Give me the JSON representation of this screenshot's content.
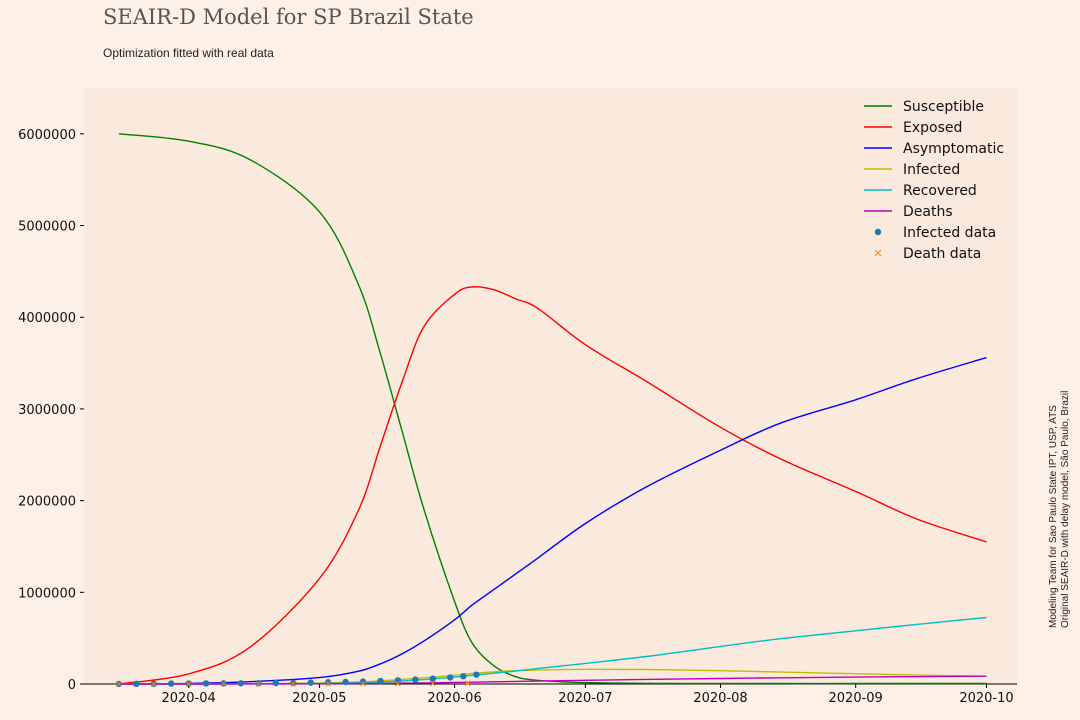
{
  "header": {
    "title": "SEAIR-D Model for SP Brazil State",
    "subtitle": "Optimization fitted with real data"
  },
  "credit": {
    "line1": "Modeling Team for Sao Paulo State IPT, USP, ATS",
    "line2": "Original SEAIR-D with delay model, São Paulo, Brazil"
  },
  "colors": {
    "background": "#fdf0e6",
    "plot_background": "#fae9dd",
    "Susceptible": "#008000",
    "Exposed": "#ff0000",
    "Asymptomatic": "#0000ff",
    "Infected": "#bfbf00",
    "Recovered": "#00bfbf",
    "Deaths": "#bf00bf",
    "Infected data": "#1f77b4",
    "Death data": "#ff7f0e"
  },
  "chart_data": {
    "type": "line",
    "title": "SEAIR-D Model for SP Brazil State",
    "subtitle": "Optimization fitted with real data",
    "xlabel": "",
    "ylabel": "",
    "xlim": [
      "2020-03-08",
      "2020-10-08"
    ],
    "ylim": [
      0,
      6500000
    ],
    "x_ticks": [
      "2020-04",
      "2020-05",
      "2020-06",
      "2020-07",
      "2020-08",
      "2020-09",
      "2020-10"
    ],
    "y_ticks": [
      0,
      1000000,
      2000000,
      3000000,
      4000000,
      5000000,
      6000000
    ],
    "y_tick_labels": [
      "0",
      "1000000",
      "2000000",
      "3000000",
      "4000000",
      "5000000",
      "6000000"
    ],
    "grid": false,
    "legend_position": "top-right",
    "x": [
      "2020-03-16",
      "2020-04-01",
      "2020-04-15",
      "2020-05-01",
      "2020-05-10",
      "2020-05-15",
      "2020-05-20",
      "2020-05-25",
      "2020-06-01",
      "2020-06-05",
      "2020-06-10",
      "2020-06-15",
      "2020-06-20",
      "2020-07-01",
      "2020-07-15",
      "2020-08-01",
      "2020-08-15",
      "2020-09-01",
      "2020-09-15",
      "2020-10-01"
    ],
    "series": [
      {
        "name": "Susceptible",
        "values": [
          6000000,
          5920000,
          5720000,
          5150000,
          4350000,
          3600000,
          2750000,
          1900000,
          900000,
          450000,
          200000,
          80000,
          40000,
          15000,
          8000,
          6000,
          5000,
          5000,
          5000,
          5000
        ]
      },
      {
        "name": "Exposed",
        "values": [
          0,
          110000,
          400000,
          1150000,
          1900000,
          2600000,
          3300000,
          3900000,
          4250000,
          4330000,
          4300000,
          4200000,
          4100000,
          3700000,
          3300000,
          2800000,
          2450000,
          2100000,
          1800000,
          1550000
        ]
      },
      {
        "name": "Asymptomatic",
        "values": [
          0,
          5000,
          25000,
          70000,
          140000,
          220000,
          330000,
          470000,
          700000,
          860000,
          1030000,
          1200000,
          1370000,
          1750000,
          2150000,
          2550000,
          2850000,
          3100000,
          3330000,
          3560000
        ]
      },
      {
        "name": "Infected",
        "values": [
          0,
          1000,
          3000,
          10000,
          22000,
          35000,
          50000,
          68000,
          95000,
          115000,
          132000,
          145000,
          152000,
          160000,
          158000,
          145000,
          130000,
          112000,
          97000,
          85000
        ]
      },
      {
        "name": "Recovered",
        "values": [
          0,
          500,
          2000,
          6000,
          14000,
          22000,
          33000,
          48000,
          75000,
          95000,
          118000,
          142000,
          168000,
          225000,
          300000,
          410000,
          495000,
          580000,
          650000,
          725000
        ]
      },
      {
        "name": "Deaths",
        "values": [
          0,
          200,
          800,
          2500,
          5000,
          7000,
          9500,
          12500,
          17000,
          20000,
          24000,
          28000,
          32000,
          40000,
          50000,
          60000,
          68000,
          75000,
          80000,
          85000
        ]
      }
    ],
    "scatter_series": [
      {
        "name": "Infected data",
        "marker": "circle",
        "x": [
          "2020-03-16",
          "2020-03-20",
          "2020-03-24",
          "2020-03-28",
          "2020-04-01",
          "2020-04-05",
          "2020-04-09",
          "2020-04-13",
          "2020-04-17",
          "2020-04-21",
          "2020-04-25",
          "2020-04-29",
          "2020-05-03",
          "2020-05-07",
          "2020-05-11",
          "2020-05-15",
          "2020-05-19",
          "2020-05-23",
          "2020-05-27",
          "2020-05-31",
          "2020-06-03",
          "2020-06-06"
        ],
        "values": [
          1000,
          2000,
          3000,
          4000,
          5000,
          6000,
          7000,
          8000,
          9000,
          11000,
          13000,
          15000,
          19000,
          22000,
          26000,
          32000,
          39000,
          48000,
          58000,
          72000,
          85000,
          102000
        ]
      },
      {
        "name": "Death data",
        "marker": "x",
        "x": [
          "2020-03-16",
          "2020-03-24",
          "2020-04-01",
          "2020-04-09",
          "2020-04-17",
          "2020-04-25",
          "2020-05-03",
          "2020-05-11",
          "2020-05-19",
          "2020-05-27",
          "2020-06-04"
        ],
        "values": [
          0,
          50,
          200,
          500,
          900,
          1400,
          2200,
          3400,
          4800,
          6500,
          8200
        ]
      }
    ],
    "legend": [
      "Susceptible",
      "Exposed",
      "Asymptomatic",
      "Infected",
      "Recovered",
      "Deaths",
      "Infected data",
      "Death data"
    ]
  }
}
